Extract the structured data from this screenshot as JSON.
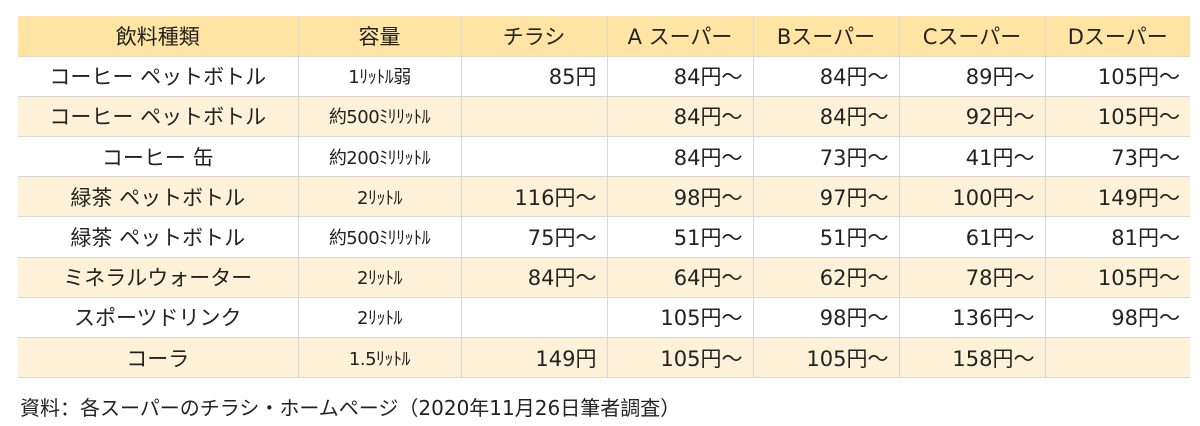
{
  "table": {
    "headers": [
      "飲料種類",
      "容量",
      "チラシ",
      "A スーパー",
      "Bスーパー",
      "Cスーパー",
      "Dスーパー"
    ],
    "rows": [
      [
        "コーヒー ペットボトル",
        "1ﾘｯﾄﾙ弱",
        "85円",
        "84円～",
        "84円～",
        "89円～",
        "105円～"
      ],
      [
        "コーヒー ペットボトル",
        "約500ﾐﾘﾘｯﾄﾙ",
        "",
        "84円～",
        "84円～",
        "92円～",
        "105円～"
      ],
      [
        "コーヒー 缶",
        "約200ﾐﾘﾘｯﾄﾙ",
        "",
        "84円～",
        "73円～",
        "41円～",
        "73円～"
      ],
      [
        "緑茶 ペットボトル",
        "2ﾘｯﾄﾙ",
        "116円～",
        "98円～",
        "97円～",
        "100円～",
        "149円～"
      ],
      [
        "緑茶 ペットボトル",
        "約500ﾐﾘﾘｯﾄﾙ",
        "75円～",
        "51円～",
        "51円～",
        "61円～",
        "81円～"
      ],
      [
        "ミネラルウォーター",
        "2ﾘｯﾄﾙ",
        "84円～",
        "64円～",
        "62円～",
        "78円～",
        "105円～"
      ],
      [
        "スポーツドリンク",
        "2ﾘｯﾄﾙ",
        "",
        "105円～",
        "98円～",
        "136円～",
        "98円～"
      ],
      [
        "コーラ",
        "1.5ﾘｯﾄﾙ",
        "149円",
        "105円～",
        "105円～",
        "158円～",
        ""
      ]
    ]
  },
  "caption": "資料：各スーパーのチラシ・ホームページ（2020年11月26日筆者調査）",
  "colors": {
    "header_bg": "#ffe4a3",
    "alt_row_bg": "#fdf2d7",
    "plain_row_bg": "#ffffff"
  }
}
